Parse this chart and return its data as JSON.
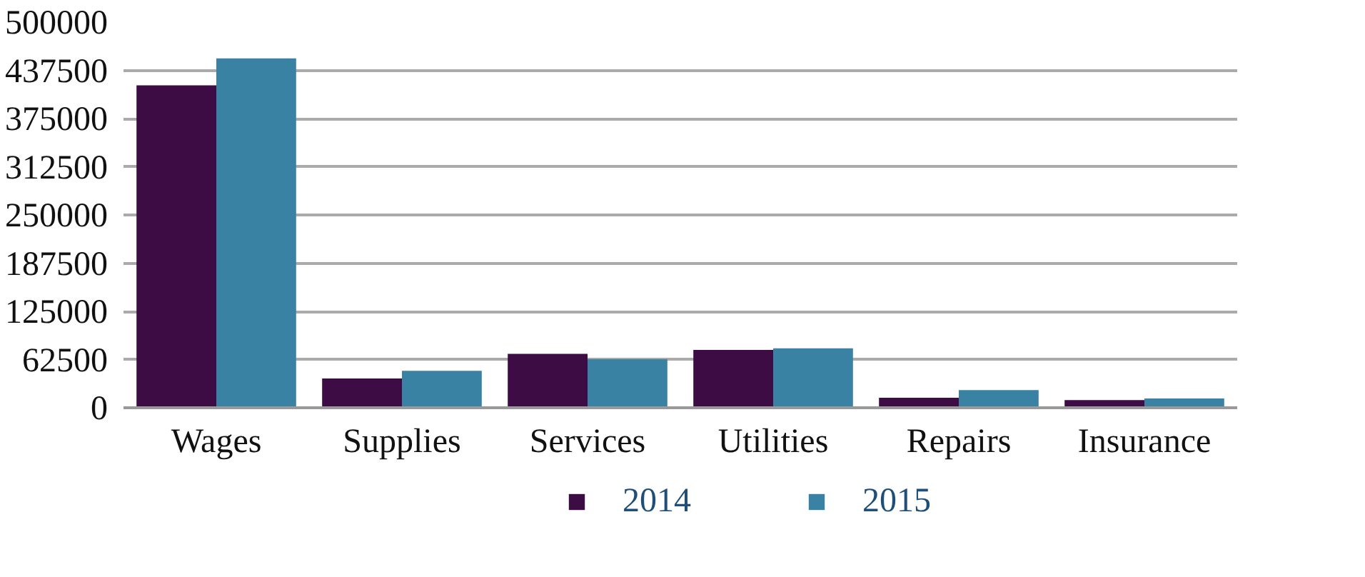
{
  "chart_data": {
    "type": "bar",
    "categories": [
      "Wages",
      "Supplies",
      "Services",
      "Utilities",
      "Repairs",
      "Insurance"
    ],
    "series": [
      {
        "name": "2014",
        "color": "#3d0c45",
        "values": [
          418000,
          38000,
          70000,
          75000,
          13000,
          10000
        ]
      },
      {
        "name": "2015",
        "color": "#3a82a4",
        "values": [
          453000,
          48000,
          63000,
          77000,
          23000,
          12000
        ]
      }
    ],
    "ylim": [
      0,
      500000
    ],
    "yticks": [
      0,
      62500,
      125000,
      187500,
      250000,
      312500,
      375000,
      437500,
      500000
    ],
    "grid": "y",
    "legend": "bottom"
  }
}
